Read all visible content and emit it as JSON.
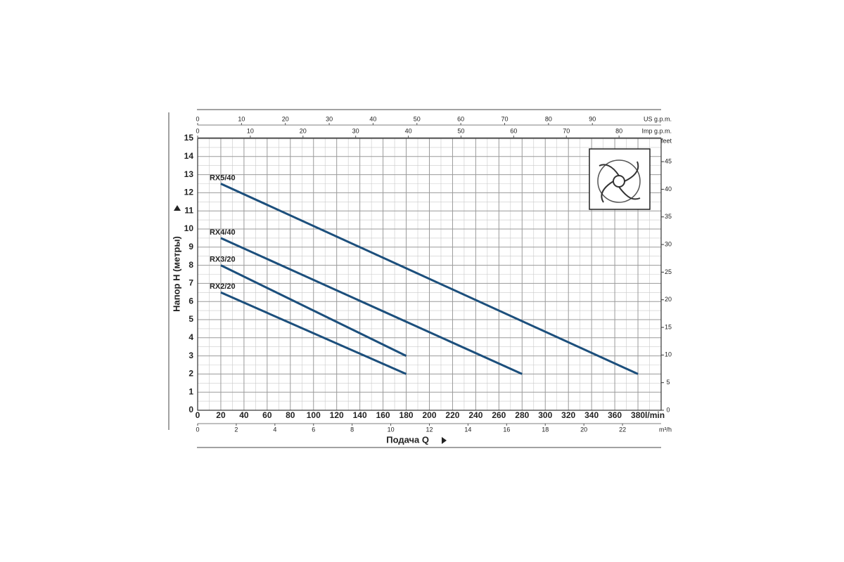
{
  "chart_data": {
    "type": "line",
    "ylabel": "Напор H (метры)",
    "xlabel": "Подача Q",
    "x_unit": "l/min",
    "grid": true,
    "xlim": [
      0,
      400
    ],
    "xticks": [
      0,
      20,
      40,
      60,
      80,
      100,
      120,
      140,
      160,
      180,
      200,
      220,
      240,
      260,
      280,
      300,
      320,
      340,
      360,
      380
    ],
    "ylim": [
      0,
      15
    ],
    "yticks": [
      0,
      1,
      2,
      3,
      4,
      5,
      6,
      7,
      8,
      9,
      10,
      11,
      12,
      13,
      14,
      15
    ],
    "y2label": "feet",
    "y2lim": [
      0,
      49.21
    ],
    "y2ticks": [
      0,
      5,
      10,
      15,
      20,
      25,
      30,
      35,
      40,
      45
    ],
    "top_axes": [
      {
        "label": "US g.p.m.",
        "lim": [
          0,
          105.68
        ],
        "ticks": [
          0,
          10,
          20,
          30,
          40,
          50,
          60,
          70,
          80,
          90
        ]
      },
      {
        "label": "Imp g.p.m.",
        "lim": [
          0,
          87.99
        ],
        "ticks": [
          0,
          10,
          20,
          30,
          40,
          50,
          60,
          70,
          80
        ]
      }
    ],
    "bottom_axis2": {
      "label": "m³/h",
      "lim": [
        0,
        24
      ],
      "ticks": [
        0,
        2,
        4,
        6,
        8,
        10,
        12,
        14,
        16,
        18,
        20,
        22
      ]
    },
    "series": [
      {
        "name": "RX5/40",
        "color": "#1c4f7c",
        "x": [
          20,
          380
        ],
        "values": [
          12.5,
          2
        ]
      },
      {
        "name": "RX4/40",
        "color": "#1c4f7c",
        "x": [
          20,
          280
        ],
        "values": [
          9.5,
          2
        ]
      },
      {
        "name": "RX3/20",
        "color": "#1c4f7c",
        "x": [
          20,
          180
        ],
        "values": [
          8,
          3
        ]
      },
      {
        "name": "RX2/20",
        "color": "#1c4f7c",
        "x": [
          20,
          180
        ],
        "values": [
          6.5,
          2
        ]
      }
    ]
  }
}
